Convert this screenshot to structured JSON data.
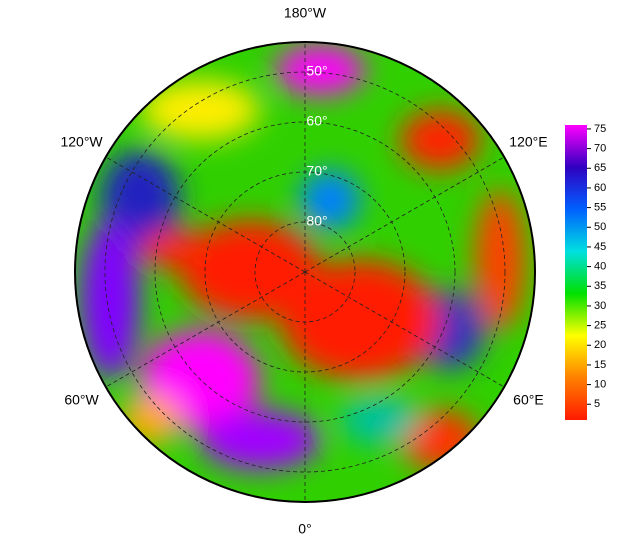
{
  "map": {
    "longitude_labels": [
      {
        "value": 180,
        "label": "180°W"
      },
      {
        "value": 120,
        "label": "120°E"
      },
      {
        "value": 60,
        "label": "60°E"
      },
      {
        "value": 0,
        "label": "0°"
      },
      {
        "value": -60,
        "label": "60°W"
      },
      {
        "value": -120,
        "label": "120°W"
      }
    ],
    "latitude_labels": [
      {
        "value": 50,
        "label": "50°"
      },
      {
        "value": 60,
        "label": "60°"
      },
      {
        "value": 70,
        "label": "70°"
      },
      {
        "value": 80,
        "label": "80°"
      }
    ],
    "colorbar": {
      "range": [
        1,
        76
      ],
      "ticks": [
        5,
        10,
        15,
        20,
        25,
        30,
        35,
        40,
        45,
        50,
        55,
        60,
        65,
        70,
        75
      ],
      "colors": [
        "#ff1a00",
        "#ff8000",
        "#ffff00",
        "#00e000",
        "#00e0e0",
        "#0060ff",
        "#3000c0",
        "#ff00ff"
      ]
    }
  }
}
